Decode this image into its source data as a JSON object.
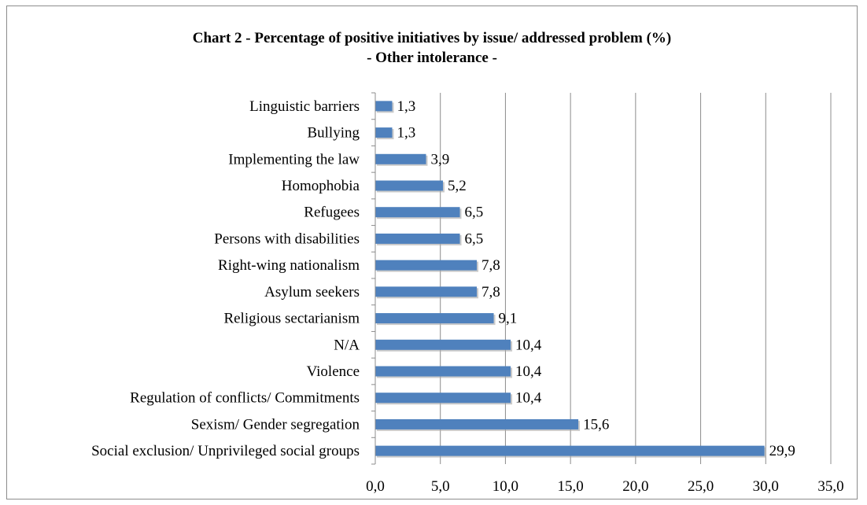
{
  "chart_data": {
    "type": "bar",
    "orientation": "horizontal",
    "title": "Chart 2 - Percentage of positive initiatives by issue/ addressed problem (%)",
    "subtitle": "- Other intolerance -",
    "xlabel": "",
    "ylabel": "",
    "xlim": [
      0,
      35
    ],
    "xticks": [
      "0,0",
      "5,0",
      "10,0",
      "15,0",
      "20,0",
      "25,0",
      "30,0",
      "35,0"
    ],
    "grid": "vertical",
    "legend": "none",
    "bar_color": "#4f81bd",
    "categories": [
      "Linguistic barriers",
      "Bullying",
      "Implementing the law",
      "Homophobia",
      "Refugees",
      "Persons with disabilities",
      "Right-wing nationalism",
      "Asylum seekers",
      "Religious sectarianism",
      "N/A",
      "Violence",
      "Regulation of conflicts/ Commitments",
      "Sexism/ Gender segregation",
      "Social exclusion/ Unprivileged social groups"
    ],
    "values": [
      1.3,
      1.3,
      3.9,
      5.2,
      6.5,
      6.5,
      7.8,
      7.8,
      9.1,
      10.4,
      10.4,
      10.4,
      15.6,
      29.9
    ],
    "data_labels": [
      "1,3",
      "1,3",
      "3,9",
      "5,2",
      "6,5",
      "6,5",
      "7,8",
      "7,8",
      "9,1",
      "10,4",
      "10,4",
      "10,4",
      "15,6",
      "29,9"
    ]
  }
}
